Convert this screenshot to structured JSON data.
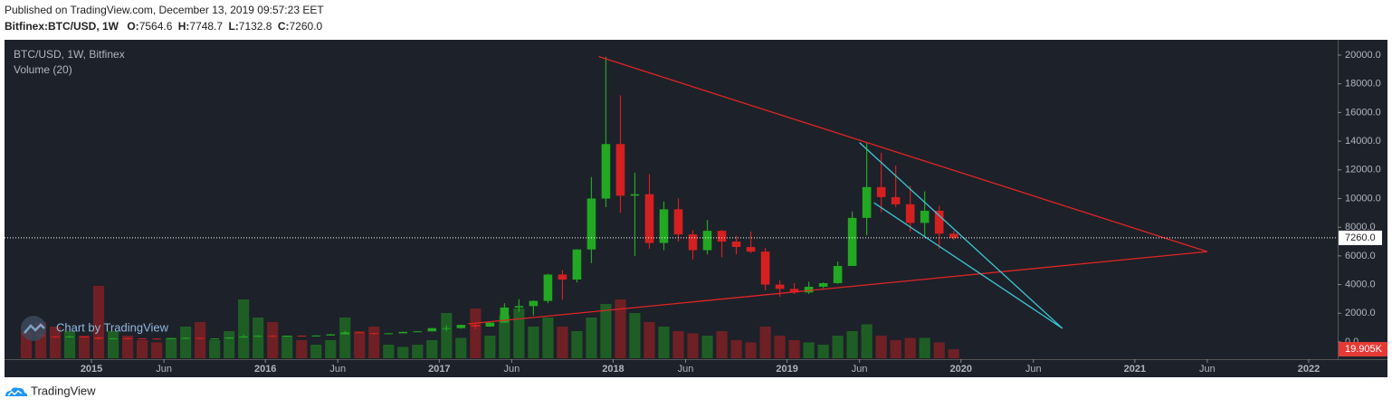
{
  "header": {
    "published": "Published on TradingView.com, December 13, 2019 09:57:23 EET"
  },
  "chart_data": {
    "type": "candlestick",
    "symbol": "Bitfinex:BTC/USD, 1W",
    "ohlc_prefixes": [
      "O:",
      "H:",
      "L:",
      "C:"
    ],
    "last_ohlc": {
      "open": 7564.6,
      "high": 7748.7,
      "low": 7132.8,
      "close": {
        "value": 7260,
        "label": "7260.0"
      }
    },
    "legend": [
      "BTC/USD, 1W, Bitfinex",
      "Volume (20)"
    ],
    "watermark": "Chart by TradingView",
    "up_color": "#22a822",
    "down_color": "#d42020",
    "x": [
      "2014-08",
      "2014-09",
      "2014-10",
      "2014-11",
      "2014-12",
      "2015-01",
      "2015-02",
      "2015-03",
      "2015-04",
      "2015-05",
      "2015-06",
      "2015-07",
      "2015-08",
      "2015-09",
      "2015-10",
      "2015-11",
      "2015-12",
      "2016-01",
      "2016-02",
      "2016-03",
      "2016-04",
      "2016-05",
      "2016-06",
      "2016-07",
      "2016-08",
      "2016-09",
      "2016-10",
      "2016-11",
      "2016-12",
      "2017-01",
      "2017-02",
      "2017-03",
      "2017-04",
      "2017-05",
      "2017-06",
      "2017-07",
      "2017-08",
      "2017-09",
      "2017-10",
      "2017-11",
      "2017-12",
      "2018-01",
      "2018-02",
      "2018-03",
      "2018-04",
      "2018-05",
      "2018-06",
      "2018-07",
      "2018-08",
      "2018-09",
      "2018-10",
      "2018-11",
      "2018-12",
      "2019-01",
      "2019-02",
      "2019-03",
      "2019-04",
      "2019-05",
      "2019-06",
      "2019-07",
      "2019-08",
      "2019-09",
      "2019-10",
      "2019-11",
      "2019-12"
    ],
    "open": [
      590,
      480,
      390,
      340,
      380,
      320,
      220,
      255,
      245,
      235,
      230,
      262,
      284,
      230,
      236,
      312,
      377,
      430,
      370,
      437,
      416,
      448,
      530,
      670,
      620,
      575,
      605,
      700,
      740,
      960,
      965,
      1190,
      1070,
      1350,
      2400,
      2500,
      2860,
      4700,
      4350,
      6450,
      10000,
      13800,
      10200,
      10300,
      6900,
      9250,
      7500,
      6400,
      7750,
      7000,
      6620,
      6300,
      4000,
      3700,
      3450,
      3850,
      4100,
      5300,
      8650,
      10800,
      10100,
      9600,
      8300,
      9150,
      7550
    ],
    "high": [
      600,
      500,
      420,
      460,
      390,
      320,
      270,
      300,
      260,
      245,
      265,
      315,
      285,
      245,
      330,
      500,
      470,
      460,
      440,
      440,
      470,
      550,
      780,
      700,
      620,
      610,
      720,
      750,
      980,
      1150,
      1200,
      1300,
      1350,
      2700,
      2980,
      2900,
      4750,
      5000,
      6450,
      11500,
      19890,
      17200,
      11800,
      11700,
      9800,
      10000,
      7800,
      8500,
      7800,
      7400,
      7700,
      6550,
      4300,
      4100,
      4200,
      4150,
      5600,
      9100,
      13900,
      13200,
      12300,
      10900,
      10500,
      9500,
      7750
    ],
    "low": [
      450,
      370,
      280,
      320,
      300,
      170,
      210,
      240,
      215,
      225,
      220,
      250,
      200,
      225,
      235,
      300,
      350,
      350,
      365,
      400,
      410,
      440,
      530,
      600,
      480,
      570,
      600,
      690,
      740,
      750,
      920,
      890,
      1060,
      1350,
      2100,
      1850,
      2700,
      2950,
      4150,
      5500,
      9400,
      9000,
      6000,
      6500,
      6400,
      7000,
      5750,
      6100,
      5900,
      6100,
      6200,
      3600,
      3150,
      3350,
      3350,
      3750,
      4050,
      5300,
      7450,
      9050,
      9400,
      7700,
      7300,
      6500,
      7100
    ],
    "close": [
      480,
      390,
      340,
      380,
      320,
      220,
      255,
      245,
      235,
      230,
      262,
      284,
      230,
      236,
      312,
      377,
      430,
      370,
      437,
      416,
      448,
      530,
      670,
      620,
      575,
      605,
      700,
      740,
      960,
      965,
      1190,
      1070,
      1350,
      2400,
      2500,
      2860,
      4700,
      4350,
      6450,
      10000,
      13800,
      10200,
      10300,
      6900,
      9250,
      7500,
      6400,
      7750,
      7000,
      6620,
      6300,
      4000,
      3700,
      3450,
      3850,
      4100,
      5300,
      8650,
      10800,
      10100,
      9600,
      8300,
      9150,
      7550,
      7260
    ],
    "volume": {
      "values": [
        60000,
        80000,
        70000,
        60000,
        50000,
        160000,
        60000,
        50000,
        40000,
        35000,
        45000,
        70000,
        80000,
        40000,
        60000,
        130000,
        90000,
        80000,
        50000,
        40000,
        30000,
        40000,
        90000,
        60000,
        70000,
        30000,
        25000,
        30000,
        40000,
        100000,
        45000,
        110000,
        50000,
        95000,
        110000,
        70000,
        90000,
        70000,
        60000,
        90000,
        120000,
        130000,
        100000,
        80000,
        70000,
        60000,
        55000,
        50000,
        60000,
        40000,
        35000,
        70000,
        50000,
        40000,
        35000,
        30000,
        50000,
        60000,
        75000,
        50000,
        40000,
        45000,
        45000,
        35000,
        19905
      ],
      "ylim": [
        0,
        400000
      ],
      "last_label": {
        "value": 19905,
        "label": "19.905K"
      }
    },
    "last_price": {
      "value": 7260,
      "label": "7260.0"
    },
    "ylim": [
      -1200,
      21070
    ],
    "yticks": [
      {
        "value": 0,
        "label": "0.0"
      },
      {
        "value": 2000,
        "label": "2000.0"
      },
      {
        "value": 4000,
        "label": "4000.0"
      },
      {
        "value": 6000,
        "label": "6000.0"
      },
      {
        "value": 8000,
        "label": "8000.0"
      },
      {
        "value": 10000,
        "label": "10000.0"
      },
      {
        "value": 12000,
        "label": "12000.0"
      },
      {
        "value": 14000,
        "label": "14000.0"
      },
      {
        "value": 16000,
        "label": "16000.0"
      },
      {
        "value": 18000,
        "label": "18000.0"
      },
      {
        "value": 20000,
        "label": "20000.0"
      }
    ],
    "xlim": [
      "2014-07",
      "2022-03"
    ],
    "xticks": [
      {
        "value": "2015-01",
        "label": "2015"
      },
      {
        "value": "2015-06",
        "label": "Jun"
      },
      {
        "value": "2016-01",
        "label": "2016"
      },
      {
        "value": "2016-06",
        "label": "Jun"
      },
      {
        "value": "2017-01",
        "label": "2017"
      },
      {
        "value": "2017-06",
        "label": "Jun"
      },
      {
        "value": "2018-01",
        "label": "2018"
      },
      {
        "value": "2018-06",
        "label": "Jun"
      },
      {
        "value": "2019-01",
        "label": "2019"
      },
      {
        "value": "2019-06",
        "label": "Jun"
      },
      {
        "value": "2020-01",
        "label": "2020"
      },
      {
        "value": "2020-06",
        "label": "Jun"
      },
      {
        "value": "2021-01",
        "label": "2021"
      },
      {
        "value": "2021-06",
        "label": "Jun"
      },
      {
        "value": "2022-01",
        "label": "2022"
      }
    ],
    "trendlines": [
      {
        "x": [
          "2017-12",
          "2021-06"
        ],
        "y": [
          19900,
          6300
        ],
        "color": "#e02424"
      },
      {
        "x": [
          "2017-03",
          "2021-06"
        ],
        "y": [
          1260,
          6300
        ],
        "color": "#e02424"
      },
      {
        "x": [
          "2019-06",
          "2020-08"
        ],
        "y": [
          13900,
          950
        ],
        "color": "#3cc8d8"
      },
      {
        "x": [
          "2019-07",
          "2020-08"
        ],
        "y": [
          9700,
          950
        ],
        "color": "#3cc8d8"
      }
    ]
  },
  "footer": {
    "brand": "TradingView"
  }
}
